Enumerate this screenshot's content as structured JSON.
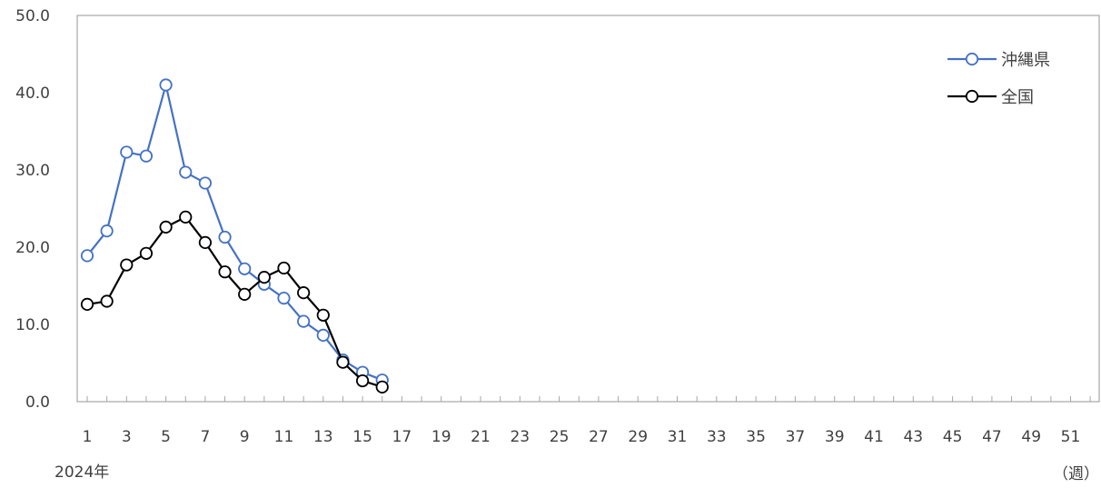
{
  "chart_data": {
    "type": "line",
    "x": [
      1,
      2,
      3,
      4,
      5,
      6,
      7,
      8,
      9,
      10,
      11,
      12,
      13,
      14,
      15,
      16
    ],
    "series": [
      {
        "name": "沖縄県",
        "color": "#4472C4",
        "values": [
          18.9,
          22.1,
          32.3,
          31.8,
          41.0,
          29.7,
          28.3,
          21.3,
          17.2,
          15.2,
          13.4,
          10.4,
          8.6,
          5.4,
          3.8,
          2.8
        ]
      },
      {
        "name": "全国",
        "color": "#000000",
        "values": [
          12.6,
          13.0,
          17.7,
          19.2,
          22.6,
          23.9,
          20.6,
          16.8,
          13.9,
          16.1,
          17.3,
          14.1,
          11.2,
          5.1,
          2.7,
          1.9
        ]
      }
    ],
    "xlim": [
      1,
      52
    ],
    "ylim": [
      0,
      50
    ],
    "y_ticks": [
      "0.0",
      "10.0",
      "20.0",
      "30.0",
      "40.0",
      "50.0"
    ],
    "x_tick_labels": [
      "1",
      "3",
      "5",
      "7",
      "9",
      "11",
      "13",
      "15",
      "17",
      "19",
      "21",
      "23",
      "25",
      "27",
      "29",
      "31",
      "33",
      "35",
      "37",
      "39",
      "41",
      "43",
      "45",
      "47",
      "49",
      "51"
    ],
    "x_note": "2024年",
    "x_unit": "（週）",
    "legend_position": "top-right",
    "grid": false
  }
}
